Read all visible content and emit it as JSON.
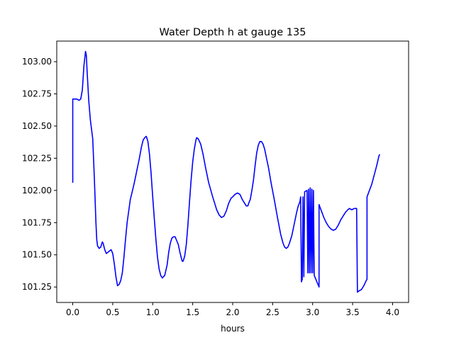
{
  "chart_data": {
    "type": "line",
    "title": "Water Depth h at gauge 135",
    "xlabel": "hours",
    "ylabel": "",
    "xlim": [
      -0.2,
      4.2
    ],
    "ylim": [
      101.13,
      103.16
    ],
    "grid": false,
    "x_ticks": [
      {
        "value": 0.0,
        "label": "0.0"
      },
      {
        "value": 0.5,
        "label": "0.5"
      },
      {
        "value": 1.0,
        "label": "1.0"
      },
      {
        "value": 1.5,
        "label": "1.5"
      },
      {
        "value": 2.0,
        "label": "2.0"
      },
      {
        "value": 2.5,
        "label": "2.5"
      },
      {
        "value": 3.0,
        "label": "3.0"
      },
      {
        "value": 3.5,
        "label": "3.5"
      },
      {
        "value": 4.0,
        "label": "4.0"
      }
    ],
    "y_ticks": [
      {
        "value": 101.25,
        "label": "101.25"
      },
      {
        "value": 101.5,
        "label": "101.50"
      },
      {
        "value": 101.75,
        "label": "101.75"
      },
      {
        "value": 102.0,
        "label": "102.00"
      },
      {
        "value": 102.25,
        "label": "102.25"
      },
      {
        "value": 102.5,
        "label": "102.50"
      },
      {
        "value": 102.75,
        "label": "102.75"
      },
      {
        "value": 103.0,
        "label": "103.00"
      }
    ],
    "series": [
      {
        "color": "#0000ff",
        "points": [
          [
            0.0,
            102.06
          ],
          [
            0.0,
            102.71
          ],
          [
            0.02,
            102.71
          ],
          [
            0.05,
            102.71
          ],
          [
            0.08,
            102.7
          ],
          [
            0.1,
            102.71
          ],
          [
            0.12,
            102.78
          ],
          [
            0.14,
            102.97
          ],
          [
            0.16,
            103.08
          ],
          [
            0.17,
            103.05
          ],
          [
            0.18,
            102.92
          ],
          [
            0.2,
            102.7
          ],
          [
            0.22,
            102.55
          ],
          [
            0.23,
            102.5
          ],
          [
            0.25,
            102.4
          ],
          [
            0.27,
            102.1
          ],
          [
            0.29,
            101.75
          ],
          [
            0.3,
            101.62
          ],
          [
            0.31,
            101.57
          ],
          [
            0.33,
            101.55
          ],
          [
            0.35,
            101.56
          ],
          [
            0.37,
            101.6
          ],
          [
            0.38,
            101.59
          ],
          [
            0.4,
            101.54
          ],
          [
            0.42,
            101.51
          ],
          [
            0.44,
            101.52
          ],
          [
            0.46,
            101.53
          ],
          [
            0.48,
            101.54
          ],
          [
            0.5,
            101.51
          ],
          [
            0.52,
            101.43
          ],
          [
            0.54,
            101.33
          ],
          [
            0.56,
            101.26
          ],
          [
            0.58,
            101.27
          ],
          [
            0.6,
            101.3
          ],
          [
            0.62,
            101.36
          ],
          [
            0.64,
            101.48
          ],
          [
            0.66,
            101.62
          ],
          [
            0.68,
            101.75
          ],
          [
            0.7,
            101.84
          ],
          [
            0.72,
            101.93
          ],
          [
            0.74,
            101.98
          ],
          [
            0.77,
            102.06
          ],
          [
            0.8,
            102.15
          ],
          [
            0.83,
            102.24
          ],
          [
            0.86,
            102.34
          ],
          [
            0.88,
            102.39
          ],
          [
            0.9,
            102.41
          ],
          [
            0.92,
            102.42
          ],
          [
            0.94,
            102.38
          ],
          [
            0.96,
            102.28
          ],
          [
            0.98,
            102.13
          ],
          [
            1.0,
            101.95
          ],
          [
            1.02,
            101.78
          ],
          [
            1.04,
            101.62
          ],
          [
            1.06,
            101.48
          ],
          [
            1.08,
            101.39
          ],
          [
            1.1,
            101.34
          ],
          [
            1.12,
            101.32
          ],
          [
            1.15,
            101.34
          ],
          [
            1.18,
            101.42
          ],
          [
            1.2,
            101.52
          ],
          [
            1.22,
            101.59
          ],
          [
            1.24,
            101.63
          ],
          [
            1.26,
            101.64
          ],
          [
            1.28,
            101.64
          ],
          [
            1.3,
            101.61
          ],
          [
            1.32,
            101.58
          ],
          [
            1.34,
            101.52
          ],
          [
            1.36,
            101.47
          ],
          [
            1.37,
            101.45
          ],
          [
            1.38,
            101.45
          ],
          [
            1.4,
            101.49
          ],
          [
            1.42,
            101.58
          ],
          [
            1.44,
            101.73
          ],
          [
            1.46,
            101.91
          ],
          [
            1.48,
            102.08
          ],
          [
            1.5,
            102.22
          ],
          [
            1.52,
            102.32
          ],
          [
            1.54,
            102.39
          ],
          [
            1.55,
            102.41
          ],
          [
            1.57,
            102.4
          ],
          [
            1.6,
            102.36
          ],
          [
            1.63,
            102.28
          ],
          [
            1.66,
            102.18
          ],
          [
            1.7,
            102.06
          ],
          [
            1.75,
            101.95
          ],
          [
            1.8,
            101.85
          ],
          [
            1.83,
            101.81
          ],
          [
            1.86,
            101.79
          ],
          [
            1.89,
            101.8
          ],
          [
            1.92,
            101.84
          ],
          [
            1.95,
            101.9
          ],
          [
            1.98,
            101.94
          ],
          [
            2.0,
            101.95
          ],
          [
            2.03,
            101.97
          ],
          [
            2.06,
            101.98
          ],
          [
            2.09,
            101.97
          ],
          [
            2.12,
            101.93
          ],
          [
            2.15,
            101.9
          ],
          [
            2.17,
            101.88
          ],
          [
            2.19,
            101.88
          ],
          [
            2.2,
            101.9
          ],
          [
            2.22,
            101.93
          ],
          [
            2.24,
            102.0
          ],
          [
            2.26,
            102.08
          ],
          [
            2.28,
            102.19
          ],
          [
            2.3,
            102.29
          ],
          [
            2.32,
            102.35
          ],
          [
            2.34,
            102.38
          ],
          [
            2.36,
            102.38
          ],
          [
            2.38,
            102.36
          ],
          [
            2.4,
            102.32
          ],
          [
            2.42,
            102.26
          ],
          [
            2.45,
            102.17
          ],
          [
            2.48,
            102.06
          ],
          [
            2.52,
            101.93
          ],
          [
            2.56,
            101.79
          ],
          [
            2.6,
            101.66
          ],
          [
            2.63,
            101.59
          ],
          [
            2.65,
            101.56
          ],
          [
            2.67,
            101.55
          ],
          [
            2.69,
            101.56
          ],
          [
            2.71,
            101.59
          ],
          [
            2.74,
            101.65
          ],
          [
            2.77,
            101.74
          ],
          [
            2.8,
            101.83
          ],
          [
            2.82,
            101.88
          ],
          [
            2.84,
            101.91
          ],
          [
            2.85,
            101.95
          ],
          [
            2.86,
            101.29
          ],
          [
            2.87,
            101.31
          ],
          [
            2.88,
            101.95
          ],
          [
            2.89,
            101.33
          ],
          [
            2.9,
            101.99
          ],
          [
            2.93,
            102.0
          ],
          [
            2.94,
            101.36
          ],
          [
            2.95,
            102.01
          ],
          [
            2.96,
            101.36
          ],
          [
            2.97,
            102.02
          ],
          [
            2.98,
            101.36
          ],
          [
            2.99,
            102.01
          ],
          [
            3.0,
            101.36
          ],
          [
            3.01,
            102.0
          ],
          [
            3.02,
            101.34
          ],
          [
            3.04,
            101.31
          ],
          [
            3.06,
            101.28
          ],
          [
            3.08,
            101.25
          ],
          [
            3.08,
            101.89
          ],
          [
            3.11,
            101.84
          ],
          [
            3.14,
            101.79
          ],
          [
            3.17,
            101.75
          ],
          [
            3.2,
            101.72
          ],
          [
            3.23,
            101.7
          ],
          [
            3.26,
            101.69
          ],
          [
            3.29,
            101.7
          ],
          [
            3.32,
            101.73
          ],
          [
            3.35,
            101.77
          ],
          [
            3.38,
            101.8
          ],
          [
            3.41,
            101.83
          ],
          [
            3.44,
            101.85
          ],
          [
            3.46,
            101.86
          ],
          [
            3.49,
            101.85
          ],
          [
            3.52,
            101.86
          ],
          [
            3.55,
            101.86
          ],
          [
            3.56,
            101.21
          ],
          [
            3.58,
            101.22
          ],
          [
            3.61,
            101.23
          ],
          [
            3.64,
            101.26
          ],
          [
            3.67,
            101.3
          ],
          [
            3.68,
            101.31
          ],
          [
            3.68,
            101.95
          ],
          [
            3.71,
            102.0
          ],
          [
            3.74,
            102.05
          ],
          [
            3.77,
            102.12
          ],
          [
            3.8,
            102.19
          ],
          [
            3.83,
            102.27
          ],
          [
            3.84,
            102.28
          ]
        ]
      }
    ]
  }
}
